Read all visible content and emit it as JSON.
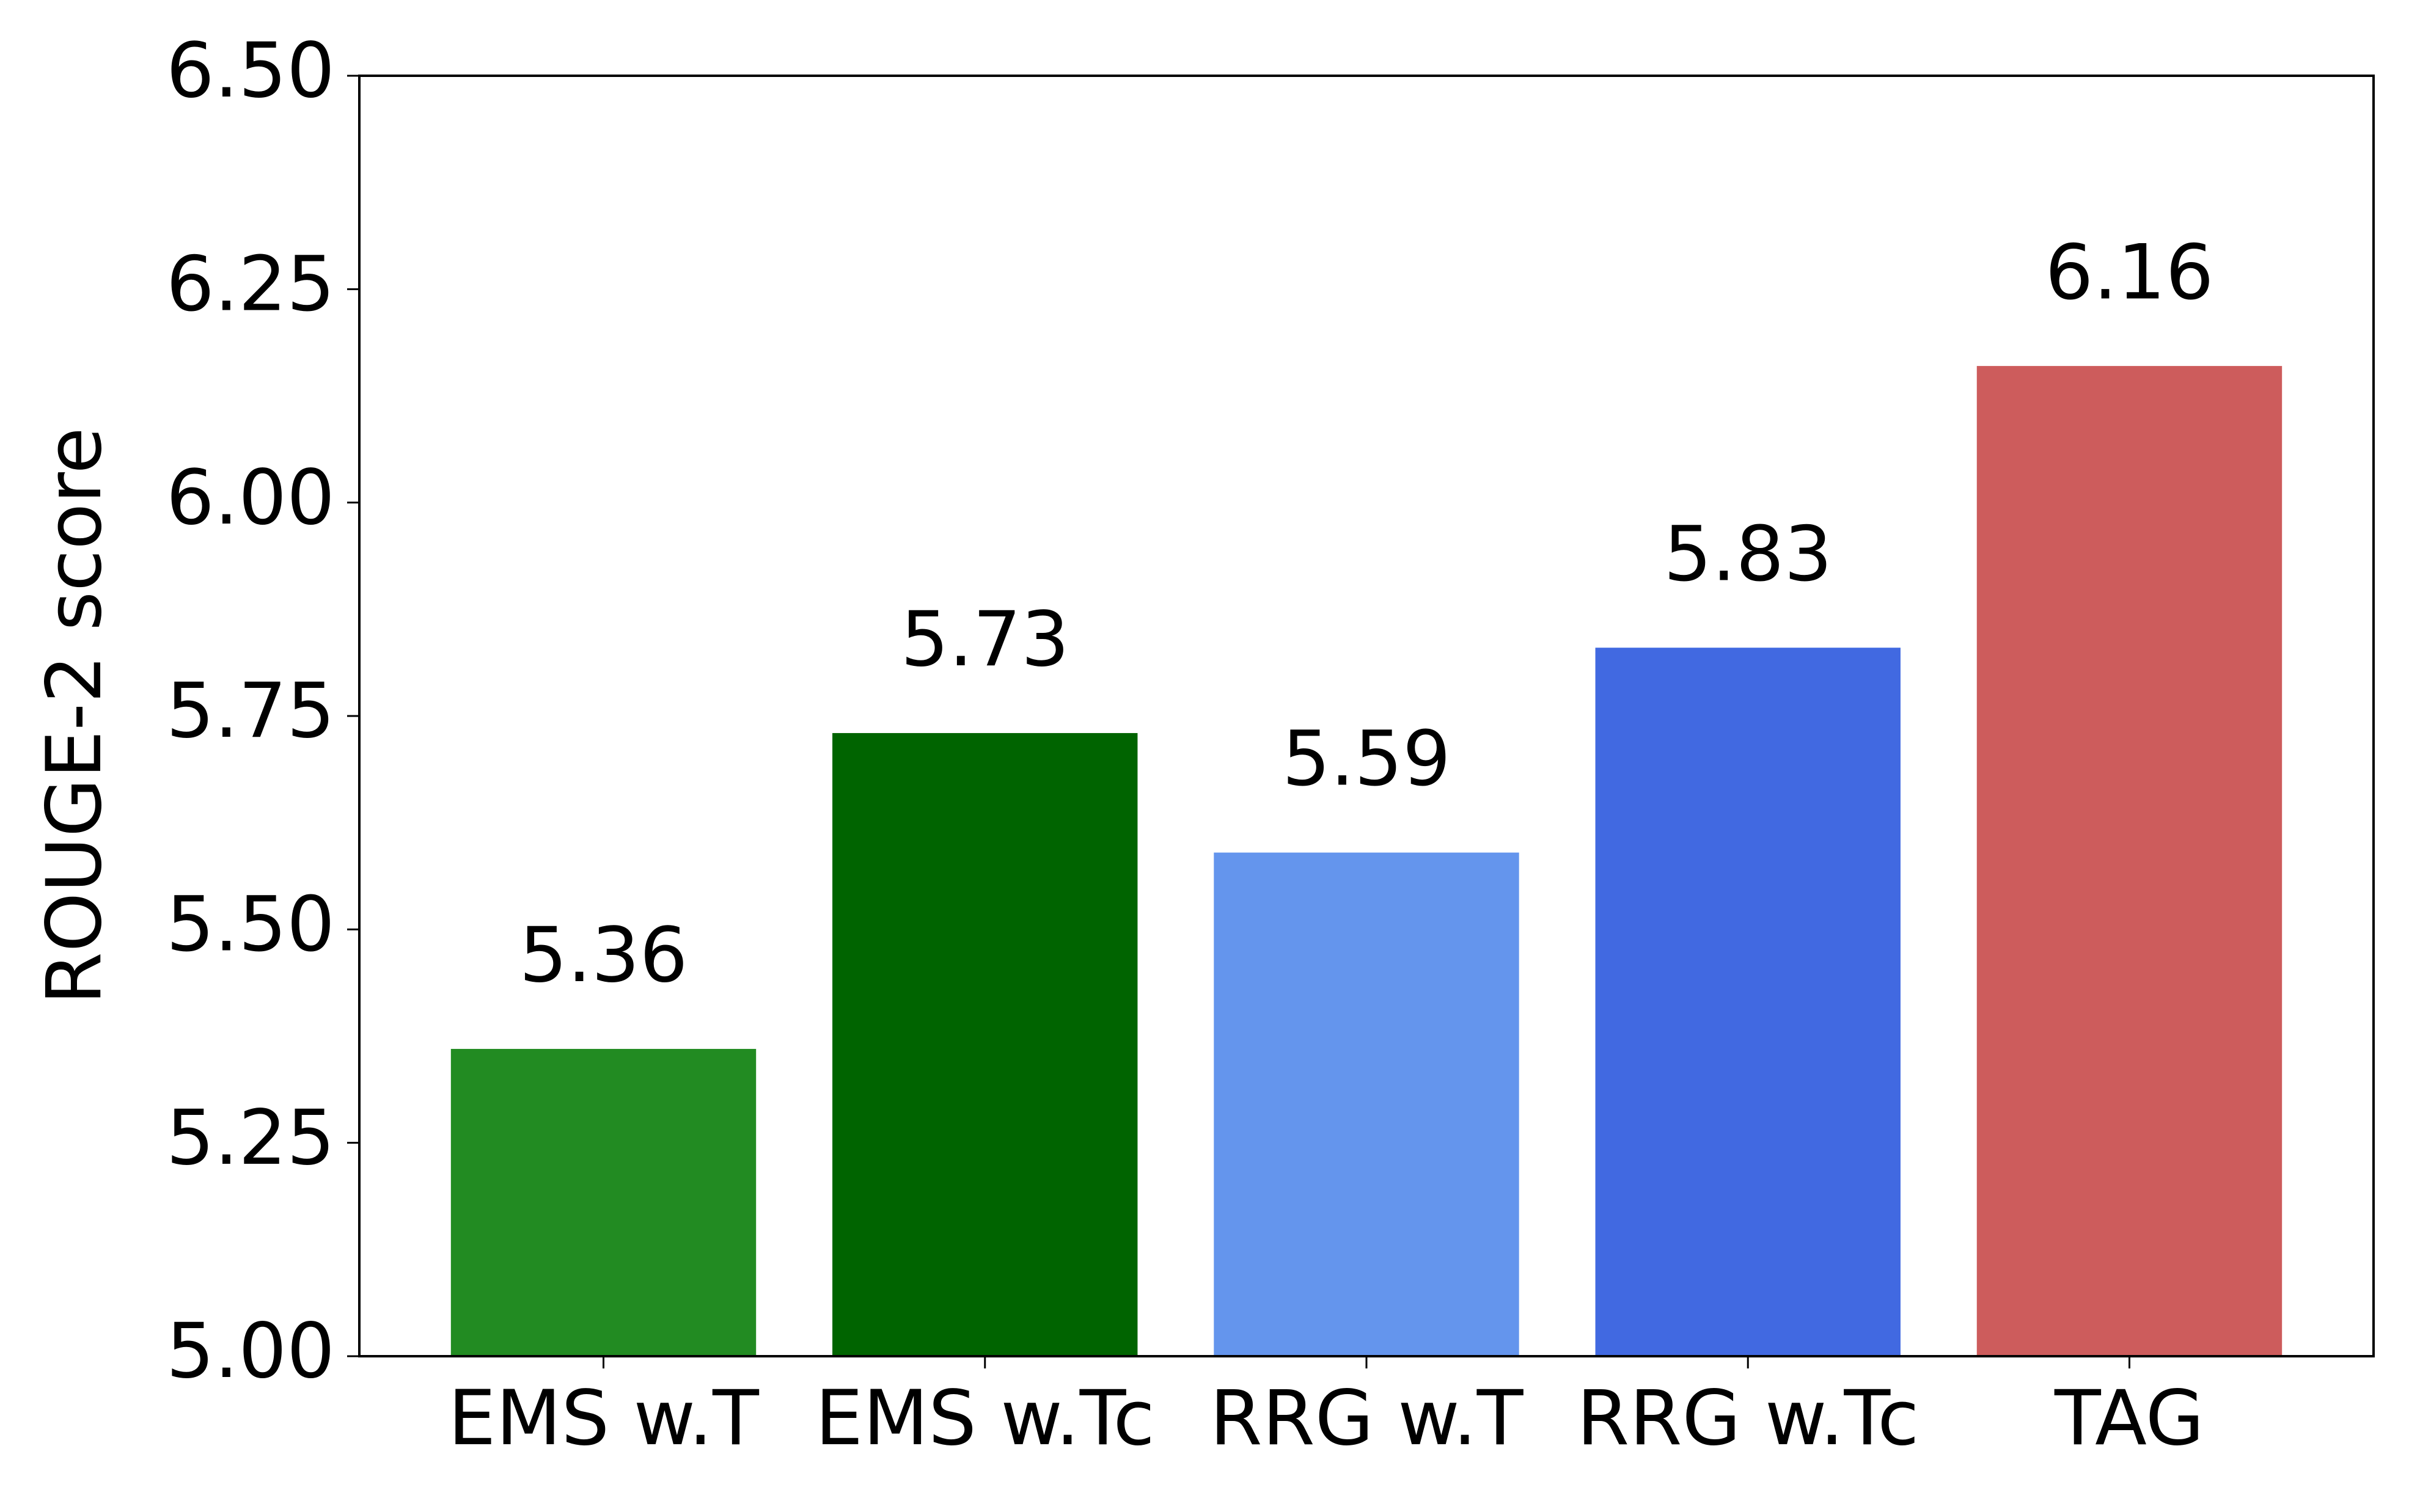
{
  "chart_data": {
    "type": "bar",
    "y_label": "ROUGE-2 score",
    "categories": [
      "EMS w.T",
      "EMS w.Tc",
      "RRG w.T",
      "RRG w.Tc",
      "TAG"
    ],
    "values": [
      5.36,
      5.73,
      5.59,
      5.83,
      6.16
    ],
    "colors": [
      "#228b22",
      "#006400",
      "#6495ed",
      "#4169e1",
      "#cd5c5c"
    ],
    "ylim": [
      5.0,
      6.5
    ],
    "yticks": [
      {
        "value": 5.0,
        "label": "5.00"
      },
      {
        "value": 5.25,
        "label": "5.25"
      },
      {
        "value": 5.5,
        "label": "5.50"
      },
      {
        "value": 5.75,
        "label": "5.75"
      },
      {
        "value": 6.0,
        "label": "6.00"
      },
      {
        "value": 6.25,
        "label": "6.25"
      },
      {
        "value": 6.5,
        "label": "6.50"
      }
    ],
    "grid": false
  }
}
